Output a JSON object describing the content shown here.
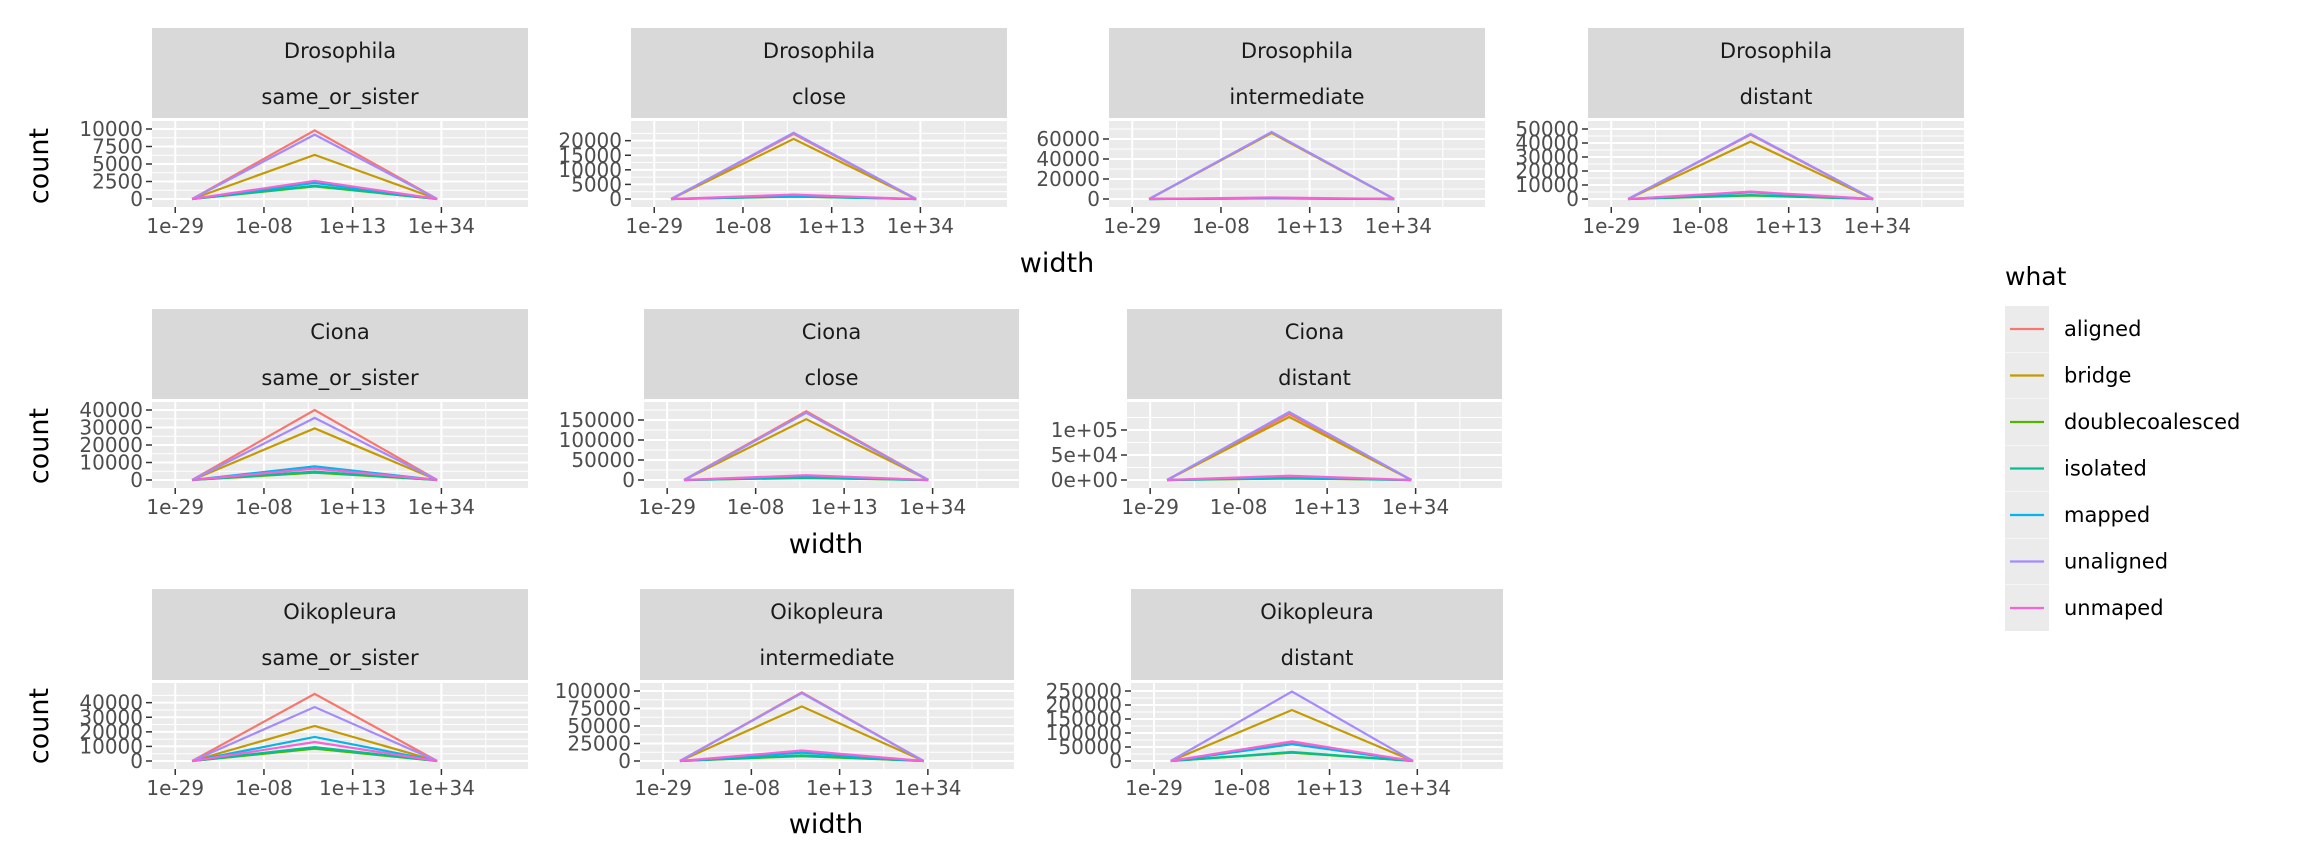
{
  "colors": {
    "aligned": "#F8766D",
    "bridge": "#C49A00",
    "doublecoalesced": "#53B400",
    "isolated": "#00C094",
    "mapped": "#00B6EB",
    "unaligned": "#A58AFF",
    "unmaped": "#FB61D7",
    "panel_bg": "#EBEBEB",
    "strip_bg": "#D9D9D9",
    "grid": "#FFFFFF"
  },
  "legend": {
    "title": "what",
    "entries": [
      "aligned",
      "bridge",
      "doublecoalesced",
      "isolated",
      "mapped",
      "unaligned",
      "unmaped"
    ]
  },
  "axis_titles": {
    "y": "count",
    "x": "width"
  },
  "chart_data": [
    {
      "type": "line",
      "organism": "Drosophila",
      "category": "same_or_sister",
      "x": [
        1e-25,
        10000.0,
        1e+33
      ],
      "x_ticks": [
        "1e-29",
        "1e-08",
        "1e+13",
        "1e+34"
      ],
      "ylim": [
        0,
        10000
      ],
      "y_ticks": [
        "0",
        "2500",
        "5000",
        "7500",
        "10000"
      ],
      "series": [
        {
          "name": "aligned",
          "values": [
            0,
            9800,
            0
          ]
        },
        {
          "name": "bridge",
          "values": [
            0,
            6300,
            0
          ]
        },
        {
          "name": "doublecoalesced",
          "values": [
            0,
            1800,
            0
          ]
        },
        {
          "name": "isolated",
          "values": [
            0,
            1900,
            0
          ]
        },
        {
          "name": "mapped",
          "values": [
            0,
            2300,
            0
          ]
        },
        {
          "name": "unaligned",
          "values": [
            0,
            9200,
            0
          ]
        },
        {
          "name": "unmaped",
          "values": [
            0,
            2600,
            0
          ]
        }
      ]
    },
    {
      "type": "line",
      "organism": "Drosophila",
      "category": "close",
      "x": [
        1e-25,
        10000.0,
        1e+33
      ],
      "x_ticks": [
        "1e-29",
        "1e-08",
        "1e+13",
        "1e+34"
      ],
      "ylim": [
        0,
        24000
      ],
      "y_ticks": [
        "0",
        "5000",
        "10000",
        "15000",
        "20000"
      ],
      "series": [
        {
          "name": "aligned",
          "values": [
            0,
            22300,
            0
          ]
        },
        {
          "name": "bridge",
          "values": [
            0,
            20600,
            0
          ]
        },
        {
          "name": "doublecoalesced",
          "values": [
            0,
            800,
            0
          ]
        },
        {
          "name": "isolated",
          "values": [
            0,
            900,
            0
          ]
        },
        {
          "name": "mapped",
          "values": [
            0,
            1000,
            0
          ]
        },
        {
          "name": "unaligned",
          "values": [
            0,
            22700,
            0
          ]
        },
        {
          "name": "unmaped",
          "values": [
            0,
            1500,
            0
          ]
        }
      ]
    },
    {
      "type": "line",
      "organism": "Drosophila",
      "category": "intermediate",
      "x": [
        1e-25,
        10000.0,
        1e+33
      ],
      "x_ticks": [
        "1e-29",
        "1e-08",
        "1e+13",
        "1e+34"
      ],
      "ylim": [
        0,
        70000
      ],
      "y_ticks": [
        "0",
        "20000",
        "40000",
        "60000"
      ],
      "series": [
        {
          "name": "aligned",
          "values": [
            0,
            66500,
            0
          ]
        },
        {
          "name": "bridge",
          "values": [
            0,
            66000,
            0
          ]
        },
        {
          "name": "doublecoalesced",
          "values": [
            0,
            600,
            0
          ]
        },
        {
          "name": "isolated",
          "values": [
            0,
            700,
            0
          ]
        },
        {
          "name": "mapped",
          "values": [
            0,
            800,
            0
          ]
        },
        {
          "name": "unaligned",
          "values": [
            0,
            67000,
            0
          ]
        },
        {
          "name": "unmaped",
          "values": [
            0,
            1500,
            0
          ]
        }
      ]
    },
    {
      "type": "line",
      "organism": "Drosophila",
      "category": "distant",
      "x": [
        1e-25,
        10000.0,
        1e+33
      ],
      "x_ticks": [
        "1e-29",
        "1e-08",
        "1e+13",
        "1e+34"
      ],
      "ylim": [
        0,
        50000
      ],
      "y_ticks": [
        "0",
        "10000",
        "20000",
        "30000",
        "40000",
        "50000"
      ],
      "series": [
        {
          "name": "aligned",
          "values": [
            0,
            46000,
            0
          ]
        },
        {
          "name": "bridge",
          "values": [
            0,
            41000,
            0
          ]
        },
        {
          "name": "doublecoalesced",
          "values": [
            0,
            2500,
            0
          ]
        },
        {
          "name": "isolated",
          "values": [
            0,
            2800,
            0
          ]
        },
        {
          "name": "mapped",
          "values": [
            0,
            4800,
            0
          ]
        },
        {
          "name": "unaligned",
          "values": [
            0,
            46500,
            0
          ]
        },
        {
          "name": "unmaped",
          "values": [
            0,
            5300,
            0
          ]
        }
      ]
    },
    {
      "type": "line",
      "organism": "Ciona",
      "category": "same_or_sister",
      "x": [
        1e-25,
        10000.0,
        1e+33
      ],
      "x_ticks": [
        "1e-29",
        "1e-08",
        "1e+13",
        "1e+34"
      ],
      "ylim": [
        0,
        40000
      ],
      "y_ticks": [
        "0",
        "10000",
        "20000",
        "30000",
        "40000"
      ],
      "series": [
        {
          "name": "aligned",
          "values": [
            0,
            40000,
            0
          ]
        },
        {
          "name": "bridge",
          "values": [
            0,
            29500,
            0
          ]
        },
        {
          "name": "doublecoalesced",
          "values": [
            0,
            4200,
            0
          ]
        },
        {
          "name": "isolated",
          "values": [
            0,
            4800,
            0
          ]
        },
        {
          "name": "mapped",
          "values": [
            0,
            7800,
            0
          ]
        },
        {
          "name": "unaligned",
          "values": [
            0,
            35500,
            0
          ]
        },
        {
          "name": "unmaped",
          "values": [
            0,
            6500,
            0
          ]
        }
      ]
    },
    {
      "type": "line",
      "organism": "Ciona",
      "category": "close",
      "x": [
        1e-25,
        10000.0,
        1e+33
      ],
      "x_ticks": [
        "1e-29",
        "1e-08",
        "1e+13",
        "1e+34"
      ],
      "ylim": [
        0,
        175000
      ],
      "y_ticks": [
        "0",
        "50000",
        "100000",
        "150000"
      ],
      "series": [
        {
          "name": "aligned",
          "values": [
            0,
            172000,
            0
          ]
        },
        {
          "name": "bridge",
          "values": [
            0,
            152000,
            0
          ]
        },
        {
          "name": "doublecoalesced",
          "values": [
            0,
            5000,
            0
          ]
        },
        {
          "name": "isolated",
          "values": [
            0,
            6000,
            0
          ]
        },
        {
          "name": "mapped",
          "values": [
            0,
            9500,
            0
          ]
        },
        {
          "name": "unaligned",
          "values": [
            0,
            168000,
            0
          ]
        },
        {
          "name": "unmaped",
          "values": [
            0,
            12000,
            0
          ]
        }
      ]
    },
    {
      "type": "line",
      "organism": "Ciona",
      "category": "distant",
      "x": [
        1e-25,
        10000.0,
        1e+33
      ],
      "x_ticks": [
        "1e-29",
        "1e-08",
        "1e+13",
        "1e+34"
      ],
      "ylim": [
        0,
        140000
      ],
      "y_ticks": [
        "0e+00",
        "5e+04",
        "1e+05"
      ],
      "series": [
        {
          "name": "aligned",
          "values": [
            0,
            132000,
            0
          ]
        },
        {
          "name": "bridge",
          "values": [
            0,
            126000,
            0
          ]
        },
        {
          "name": "doublecoalesced",
          "values": [
            0,
            3000,
            0
          ]
        },
        {
          "name": "isolated",
          "values": [
            0,
            4000,
            0
          ]
        },
        {
          "name": "mapped",
          "values": [
            0,
            6000,
            0
          ]
        },
        {
          "name": "unaligned",
          "values": [
            0,
            136000,
            0
          ]
        },
        {
          "name": "unmaped",
          "values": [
            0,
            8500,
            0
          ]
        }
      ]
    },
    {
      "type": "line",
      "organism": "Oikopleura",
      "category": "same_or_sister",
      "x": [
        1e-25,
        10000.0,
        1e+33
      ],
      "x_ticks": [
        "1e-29",
        "1e-08",
        "1e+13",
        "1e+34"
      ],
      "ylim": [
        0,
        48000
      ],
      "y_ticks": [
        "0",
        "10000",
        "20000",
        "30000",
        "40000"
      ],
      "series": [
        {
          "name": "aligned",
          "values": [
            0,
            46000,
            0
          ]
        },
        {
          "name": "bridge",
          "values": [
            0,
            24000,
            0
          ]
        },
        {
          "name": "doublecoalesced",
          "values": [
            0,
            8500,
            0
          ]
        },
        {
          "name": "isolated",
          "values": [
            0,
            9500,
            0
          ]
        },
        {
          "name": "mapped",
          "values": [
            0,
            16500,
            0
          ]
        },
        {
          "name": "unaligned",
          "values": [
            0,
            37000,
            0
          ]
        },
        {
          "name": "unmaped",
          "values": [
            0,
            13000,
            0
          ]
        }
      ]
    },
    {
      "type": "line",
      "organism": "Oikopleura",
      "category": "intermediate",
      "x": [
        1e-25,
        10000.0,
        1e+33
      ],
      "x_ticks": [
        "1e-29",
        "1e-08",
        "1e+13",
        "1e+34"
      ],
      "ylim": [
        0,
        100000
      ],
      "y_ticks": [
        "0",
        "25000",
        "50000",
        "75000",
        "100000"
      ],
      "series": [
        {
          "name": "aligned",
          "values": [
            0,
            98000,
            0
          ]
        },
        {
          "name": "bridge",
          "values": [
            0,
            78000,
            0
          ]
        },
        {
          "name": "doublecoalesced",
          "values": [
            0,
            7000,
            0
          ]
        },
        {
          "name": "isolated",
          "values": [
            0,
            8000,
            0
          ]
        },
        {
          "name": "mapped",
          "values": [
            0,
            12000,
            0
          ]
        },
        {
          "name": "unaligned",
          "values": [
            0,
            97000,
            0
          ]
        },
        {
          "name": "unmaped",
          "values": [
            0,
            15000,
            0
          ]
        }
      ]
    },
    {
      "type": "line",
      "organism": "Oikopleura",
      "category": "distant",
      "x": [
        1e-25,
        10000.0,
        1e+33
      ],
      "x_ticks": [
        "1e-29",
        "1e-08",
        "1e+13",
        "1e+34"
      ],
      "ylim": [
        0,
        250000
      ],
      "y_ticks": [
        "0",
        "50000",
        "100000",
        "150000",
        "200000",
        "250000"
      ],
      "series": [
        {
          "name": "aligned",
          "values": [
            0,
            66000,
            0
          ]
        },
        {
          "name": "bridge",
          "values": [
            0,
            182000,
            0
          ]
        },
        {
          "name": "doublecoalesced",
          "values": [
            0,
            30000,
            0
          ]
        },
        {
          "name": "isolated",
          "values": [
            0,
            32000,
            0
          ]
        },
        {
          "name": "mapped",
          "values": [
            0,
            60000,
            0
          ]
        },
        {
          "name": "unaligned",
          "values": [
            0,
            248000,
            0
          ]
        },
        {
          "name": "unmaped",
          "values": [
            0,
            70000,
            0
          ]
        }
      ]
    }
  ]
}
